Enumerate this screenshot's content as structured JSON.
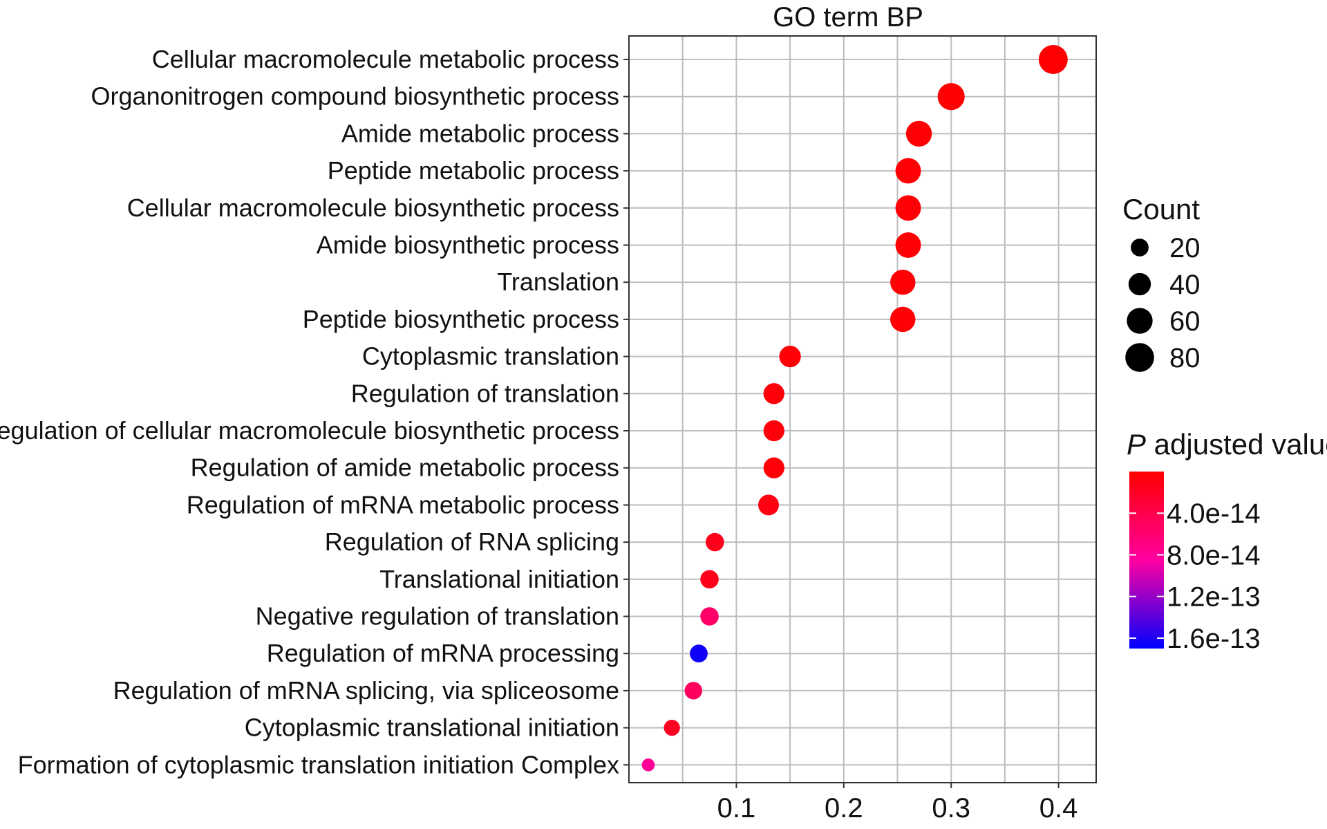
{
  "chart_data": {
    "type": "scatter",
    "title": "GO term BP",
    "xlabel": "",
    "ylabel": "",
    "xlim": [
      0.0,
      0.435
    ],
    "xticks": [
      {
        "value": 0.1,
        "label": "0.1"
      },
      {
        "value": 0.2,
        "label": "0.2"
      },
      {
        "value": 0.3,
        "label": "0.3"
      },
      {
        "value": 0.4,
        "label": "0.4"
      }
    ],
    "grid": true,
    "points": [
      {
        "term": "Cellular macromolecule metabolic process",
        "x": 0.395,
        "count": 82,
        "p_adjust": 1e-15
      },
      {
        "term": "Organonitrogen compound biosynthetic process",
        "x": 0.3,
        "count": 68,
        "p_adjust": 1.5e-15
      },
      {
        "term": "Amide metabolic process",
        "x": 0.27,
        "count": 60,
        "p_adjust": 2e-15
      },
      {
        "term": "Peptide metabolic process",
        "x": 0.26,
        "count": 58,
        "p_adjust": 2e-15
      },
      {
        "term": "Cellular macromolecule biosynthetic process",
        "x": 0.26,
        "count": 58,
        "p_adjust": 2e-15
      },
      {
        "term": "Amide biosynthetic process",
        "x": 0.26,
        "count": 58,
        "p_adjust": 2e-15
      },
      {
        "term": "Translation",
        "x": 0.255,
        "count": 56,
        "p_adjust": 2e-15
      },
      {
        "term": "Peptide biosynthetic process",
        "x": 0.255,
        "count": 56,
        "p_adjust": 2e-15
      },
      {
        "term": "Cytoplasmic translation",
        "x": 0.15,
        "count": 36,
        "p_adjust": 3e-15
      },
      {
        "term": "Regulation of translation",
        "x": 0.135,
        "count": 33,
        "p_adjust": 5e-15
      },
      {
        "term": "Regulation of cellular macromolecule biosynthetic process",
        "x": 0.135,
        "count": 33,
        "p_adjust": 5e-15
      },
      {
        "term": "Regulation of amide metabolic process",
        "x": 0.135,
        "count": 33,
        "p_adjust": 5e-15
      },
      {
        "term": "Regulation of mRNA metabolic process",
        "x": 0.13,
        "count": 32,
        "p_adjust": 1e-14
      },
      {
        "term": "Regulation of RNA splicing",
        "x": 0.08,
        "count": 22,
        "p_adjust": 1.5e-14
      },
      {
        "term": "Translational initiation",
        "x": 0.075,
        "count": 22,
        "p_adjust": 1.5e-14
      },
      {
        "term": "Negative regulation of translation",
        "x": 0.075,
        "count": 22,
        "p_adjust": 5.5e-14
      },
      {
        "term": "Regulation of mRNA processing",
        "x": 0.065,
        "count": 20,
        "p_adjust": 1.65e-13
      },
      {
        "term": "Regulation of mRNA splicing, via spliceosome",
        "x": 0.06,
        "count": 19,
        "p_adjust": 5e-14
      },
      {
        "term": "Cytoplasmic translational initiation",
        "x": 0.04,
        "count": 14,
        "p_adjust": 1.8e-14
      },
      {
        "term": "Formation of cytoplasmic translation initiation Complex",
        "x": 0.018,
        "count": 6,
        "p_adjust": 8e-14
      }
    ],
    "size_legend": {
      "title": "Count",
      "entries": [
        {
          "value": 20,
          "label": "20"
        },
        {
          "value": 40,
          "label": "40"
        },
        {
          "value": 60,
          "label": "60"
        },
        {
          "value": 80,
          "label": "80"
        }
      ]
    },
    "color_legend": {
      "title_italic": "P",
      "title_rest": " adjusted value",
      "range": [
        0,
        1.7e-13
      ],
      "ticks": [
        {
          "value": 4e-14,
          "label": "4.0e-14"
        },
        {
          "value": 8e-14,
          "label": "8.0e-14"
        },
        {
          "value": 1.2e-13,
          "label": "1.2e-13"
        },
        {
          "value": 1.6e-13,
          "label": "1.6e-13"
        }
      ],
      "low_color": "#ff0000",
      "high_color": "#0000ff"
    },
    "colors": {
      "grid": "#bdbdbd",
      "panel_border": "#333333",
      "point_legend": "#000000"
    }
  }
}
